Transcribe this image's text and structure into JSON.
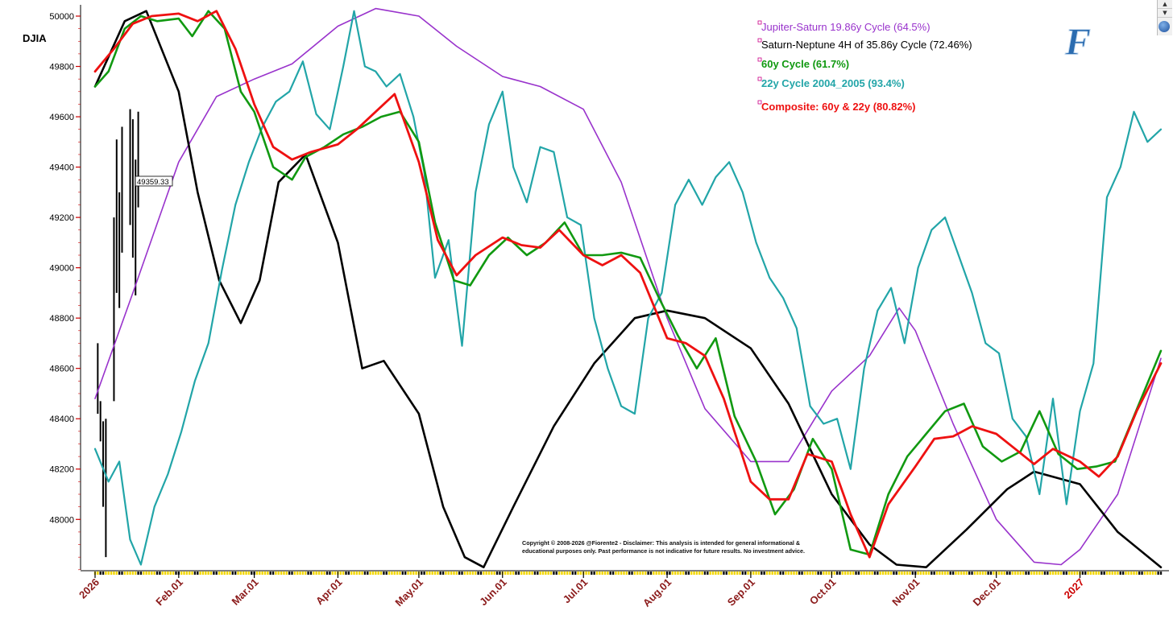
{
  "chart_data": {
    "type": "line",
    "symbol": "DJIA",
    "last_price_label": "49359.33",
    "ylim": [
      47800,
      50000
    ],
    "yticks": [
      48000,
      48200,
      48400,
      48600,
      48800,
      49000,
      49200,
      49400,
      49600,
      49800,
      50000
    ],
    "x_range": [
      "2026-01-01",
      "2027-01-31"
    ],
    "xticks": [
      {
        "label": "2026",
        "date": "2026-01-01",
        "color": "#8b1a1a"
      },
      {
        "label": "Feb.01",
        "date": "2026-02-01",
        "color": "#8b1a1a"
      },
      {
        "label": "Mar.01",
        "date": "2026-03-01",
        "color": "#8b1a1a"
      },
      {
        "label": "Apr.01",
        "date": "2026-04-01",
        "color": "#8b1a1a"
      },
      {
        "label": "May.01",
        "date": "2026-05-01",
        "color": "#8b1a1a"
      },
      {
        "label": "Jun.01",
        "date": "2026-06-01",
        "color": "#8b1a1a"
      },
      {
        "label": "Jul.01",
        "date": "2026-07-01",
        "color": "#8b1a1a"
      },
      {
        "label": "Aug.01",
        "date": "2026-08-01",
        "color": "#8b1a1a"
      },
      {
        "label": "Sep.01",
        "date": "2026-09-01",
        "color": "#8b1a1a"
      },
      {
        "label": "Oct.01",
        "date": "2026-10-01",
        "color": "#8b1a1a"
      },
      {
        "label": "Nov.01",
        "date": "2026-11-01",
        "color": "#8b1a1a"
      },
      {
        "label": "Dec.01",
        "date": "2026-12-01",
        "color": "#8b1a1a"
      },
      {
        "label": "2027",
        "date": "2027-01-01",
        "color": "#cc0000"
      }
    ],
    "grid": false,
    "legend_position": "top-right",
    "series": [
      {
        "name": "Jupiter-Saturn 19.86y Cycle (64.5%)",
        "color": "#9933cc",
        "width": 1.6,
        "bold": false,
        "x": [
          "2026-01-01",
          "2026-01-15",
          "2026-02-01",
          "2026-02-15",
          "2026-03-01",
          "2026-03-15",
          "2026-04-01",
          "2026-04-15",
          "2026-05-01",
          "2026-05-15",
          "2026-06-01",
          "2026-06-15",
          "2026-07-01",
          "2026-07-15",
          "2026-08-01",
          "2026-08-15",
          "2026-09-01",
          "2026-09-15",
          "2026-10-01",
          "2026-10-15",
          "2026-10-26",
          "2026-11-01",
          "2026-11-15",
          "2026-12-01",
          "2026-12-15",
          "2026-12-25",
          "2027-01-01",
          "2027-01-15",
          "2027-01-31"
        ],
        "y": [
          48480,
          48900,
          49420,
          49680,
          49750,
          49810,
          49960,
          50030,
          50000,
          49880,
          49760,
          49720,
          49630,
          49340,
          48800,
          48440,
          48230,
          48230,
          48510,
          48650,
          48840,
          48750,
          48380,
          48000,
          47830,
          47820,
          47880,
          48100,
          48640
        ]
      },
      {
        "name": "Saturn-Neptune 4H of 35.86y Cycle (72.46%)",
        "color": "#000000",
        "width": 2.6,
        "bold": false,
        "x": [
          "2026-01-01",
          "2026-01-12",
          "2026-01-20",
          "2026-02-01",
          "2026-02-08",
          "2026-02-16",
          "2026-02-24",
          "2026-03-03",
          "2026-03-10",
          "2026-03-20",
          "2026-04-01",
          "2026-04-10",
          "2026-04-18",
          "2026-05-01",
          "2026-05-10",
          "2026-05-18",
          "2026-05-25",
          "2026-06-05",
          "2026-06-20",
          "2026-07-05",
          "2026-07-20",
          "2026-08-01",
          "2026-08-15",
          "2026-09-01",
          "2026-09-15",
          "2026-10-01",
          "2026-10-15",
          "2026-10-25",
          "2026-11-05",
          "2026-11-20",
          "2026-12-05",
          "2026-12-15",
          "2027-01-01",
          "2027-01-15",
          "2027-01-31"
        ],
        "y": [
          49720,
          49980,
          50020,
          49700,
          49300,
          48950,
          48780,
          48950,
          49340,
          49450,
          49100,
          48600,
          48630,
          48420,
          48050,
          47850,
          47810,
          48050,
          48370,
          48620,
          48800,
          48830,
          48800,
          48680,
          48460,
          48100,
          47900,
          47820,
          47810,
          47960,
          48120,
          48190,
          48140,
          47950,
          47810
        ]
      },
      {
        "name": "60y Cycle (61.7%)",
        "color": "#119911",
        "width": 2.6,
        "bold": true,
        "x": [
          "2026-01-01",
          "2026-01-06",
          "2026-01-12",
          "2026-01-18",
          "2026-01-24",
          "2026-02-01",
          "2026-02-06",
          "2026-02-12",
          "2026-02-18",
          "2026-02-24",
          "2026-03-01",
          "2026-03-08",
          "2026-03-15",
          "2026-03-20",
          "2026-03-27",
          "2026-04-03",
          "2026-04-10",
          "2026-04-17",
          "2026-04-24",
          "2026-05-01",
          "2026-05-07",
          "2026-05-14",
          "2026-05-20",
          "2026-05-27",
          "2026-06-03",
          "2026-06-10",
          "2026-06-17",
          "2026-06-24",
          "2026-07-01",
          "2026-07-08",
          "2026-07-15",
          "2026-07-22",
          "2026-07-29",
          "2026-08-05",
          "2026-08-12",
          "2026-08-19",
          "2026-08-26",
          "2026-09-03",
          "2026-09-10",
          "2026-09-17",
          "2026-09-24",
          "2026-10-01",
          "2026-10-08",
          "2026-10-15",
          "2026-10-22",
          "2026-10-29",
          "2026-11-05",
          "2026-11-12",
          "2026-11-19",
          "2026-11-26",
          "2026-12-03",
          "2026-12-10",
          "2026-12-17",
          "2026-12-24",
          "2026-12-31",
          "2027-01-07",
          "2027-01-14",
          "2027-01-21",
          "2027-01-31"
        ],
        "y": [
          49720,
          49780,
          49950,
          50000,
          49980,
          49990,
          49920,
          50020,
          49950,
          49700,
          49620,
          49400,
          49350,
          49440,
          49480,
          49530,
          49560,
          49600,
          49620,
          49500,
          49180,
          48950,
          48930,
          49050,
          49120,
          49050,
          49100,
          49180,
          49050,
          49050,
          49060,
          49040,
          48880,
          48730,
          48600,
          48720,
          48410,
          48230,
          48020,
          48120,
          48320,
          48200,
          47880,
          47860,
          48100,
          48250,
          48340,
          48430,
          48460,
          48290,
          48230,
          48270,
          48430,
          48260,
          48200,
          48210,
          48230,
          48410,
          48670
        ]
      },
      {
        "name": "22y Cycle 2004_2005 (93.4%)",
        "color": "#22a5a8",
        "width": 2.2,
        "bold": true,
        "x": [
          "2026-01-01",
          "2026-01-06",
          "2026-01-10",
          "2026-01-14",
          "2026-01-18",
          "2026-01-23",
          "2026-01-28",
          "2026-02-02",
          "2026-02-07",
          "2026-02-12",
          "2026-02-17",
          "2026-02-22",
          "2026-02-27",
          "2026-03-04",
          "2026-03-09",
          "2026-03-14",
          "2026-03-19",
          "2026-03-24",
          "2026-03-29",
          "2026-04-03",
          "2026-04-07",
          "2026-04-11",
          "2026-04-15",
          "2026-04-19",
          "2026-04-24",
          "2026-04-29",
          "2026-05-03",
          "2026-05-07",
          "2026-05-12",
          "2026-05-17",
          "2026-05-22",
          "2026-05-27",
          "2026-06-01",
          "2026-06-05",
          "2026-06-10",
          "2026-06-15",
          "2026-06-20",
          "2026-06-25",
          "2026-06-30",
          "2026-07-05",
          "2026-07-10",
          "2026-07-15",
          "2026-07-20",
          "2026-07-25",
          "2026-07-30",
          "2026-08-04",
          "2026-08-09",
          "2026-08-14",
          "2026-08-19",
          "2026-08-24",
          "2026-08-29",
          "2026-09-03",
          "2026-09-08",
          "2026-09-13",
          "2026-09-18",
          "2026-09-23",
          "2026-09-28",
          "2026-10-03",
          "2026-10-08",
          "2026-10-13",
          "2026-10-18",
          "2026-10-23",
          "2026-10-28",
          "2026-11-02",
          "2026-11-07",
          "2026-11-12",
          "2026-11-17",
          "2026-11-22",
          "2026-11-27",
          "2026-12-02",
          "2026-12-07",
          "2026-12-12",
          "2026-12-17",
          "2026-12-22",
          "2026-12-27",
          "2027-01-01",
          "2027-01-06",
          "2027-01-11",
          "2027-01-16",
          "2027-01-21",
          "2027-01-26",
          "2027-01-31"
        ],
        "y": [
          48280,
          48150,
          48230,
          47920,
          47820,
          48050,
          48180,
          48350,
          48550,
          48700,
          48990,
          49250,
          49420,
          49560,
          49660,
          49700,
          49820,
          49610,
          49550,
          49800,
          50020,
          49800,
          49780,
          49720,
          49770,
          49600,
          49380,
          48960,
          49110,
          48690,
          49300,
          49570,
          49700,
          49400,
          49260,
          49480,
          49460,
          49200,
          49170,
          48800,
          48600,
          48450,
          48420,
          48800,
          48900,
          49250,
          49350,
          49250,
          49360,
          49420,
          49300,
          49100,
          48960,
          48880,
          48760,
          48450,
          48380,
          48400,
          48200,
          48600,
          48830,
          48920,
          48700,
          49000,
          49150,
          49200,
          49050,
          48900,
          48700,
          48660,
          48400,
          48330,
          48100,
          48480,
          48060,
          48430,
          48620,
          49280,
          49400,
          49620,
          49500,
          49550
        ]
      },
      {
        "name": "Composite: 60y & 22y (80.82%)",
        "color": "#ee1111",
        "width": 2.8,
        "bold": true,
        "x": [
          "2026-01-01",
          "2026-01-08",
          "2026-01-15",
          "2026-01-22",
          "2026-02-01",
          "2026-02-08",
          "2026-02-15",
          "2026-02-22",
          "2026-03-01",
          "2026-03-08",
          "2026-03-15",
          "2026-03-22",
          "2026-04-01",
          "2026-04-08",
          "2026-04-15",
          "2026-04-22",
          "2026-05-01",
          "2026-05-08",
          "2026-05-15",
          "2026-05-22",
          "2026-06-01",
          "2026-06-08",
          "2026-06-15",
          "2026-06-22",
          "2026-07-01",
          "2026-07-08",
          "2026-07-15",
          "2026-07-22",
          "2026-08-01",
          "2026-08-08",
          "2026-08-15",
          "2026-08-22",
          "2026-09-01",
          "2026-09-08",
          "2026-09-15",
          "2026-09-22",
          "2026-10-01",
          "2026-10-08",
          "2026-10-15",
          "2026-10-22",
          "2026-11-01",
          "2026-11-08",
          "2026-11-15",
          "2026-11-22",
          "2026-12-01",
          "2026-12-08",
          "2026-12-15",
          "2026-12-22",
          "2027-01-01",
          "2027-01-08",
          "2027-01-15",
          "2027-01-22",
          "2027-01-31"
        ],
        "y": [
          49780,
          49870,
          49970,
          50000,
          50010,
          49980,
          50020,
          49870,
          49650,
          49480,
          49430,
          49460,
          49490,
          49550,
          49620,
          49690,
          49420,
          49110,
          48970,
          49050,
          49120,
          49090,
          49080,
          49150,
          49050,
          49010,
          49050,
          48980,
          48720,
          48700,
          48650,
          48480,
          48150,
          48080,
          48080,
          48260,
          48230,
          48020,
          47850,
          48060,
          48210,
          48320,
          48330,
          48370,
          48340,
          48280,
          48220,
          48280,
          48230,
          48170,
          48250,
          48430,
          48620
        ]
      }
    ],
    "price_bars": [
      {
        "x": "2026-01-02",
        "high": 48700,
        "low": 48420
      },
      {
        "x": "2026-01-03",
        "high": 48470,
        "low": 48310
      },
      {
        "x": "2026-01-04",
        "high": 48390,
        "low": 48050
      },
      {
        "x": "2026-01-05",
        "high": 48400,
        "low": 47850
      },
      {
        "x": "2026-01-08",
        "high": 49200,
        "low": 48470
      },
      {
        "x": "2026-01-09",
        "high": 49510,
        "low": 48900
      },
      {
        "x": "2026-01-10",
        "high": 49300,
        "low": 48840
      },
      {
        "x": "2026-01-11",
        "high": 49560,
        "low": 49060
      },
      {
        "x": "2026-01-14",
        "high": 49630,
        "low": 49170
      },
      {
        "x": "2026-01-15",
        "high": 49590,
        "low": 49040
      },
      {
        "x": "2026-01-16",
        "high": 49430,
        "low": 48890
      },
      {
        "x": "2026-01-17",
        "high": 49620,
        "low": 49240
      }
    ]
  },
  "watermark_letter": "F",
  "copyright": [
    "Copyright © 2008-2026 @Fiorente2 -  Disclaimer: This analysis is intended for general informational &",
    "educational purposes only. Past performance is not indicative for future results. No investment advice."
  ],
  "scroll_buttons": [
    "▲",
    "▼"
  ]
}
